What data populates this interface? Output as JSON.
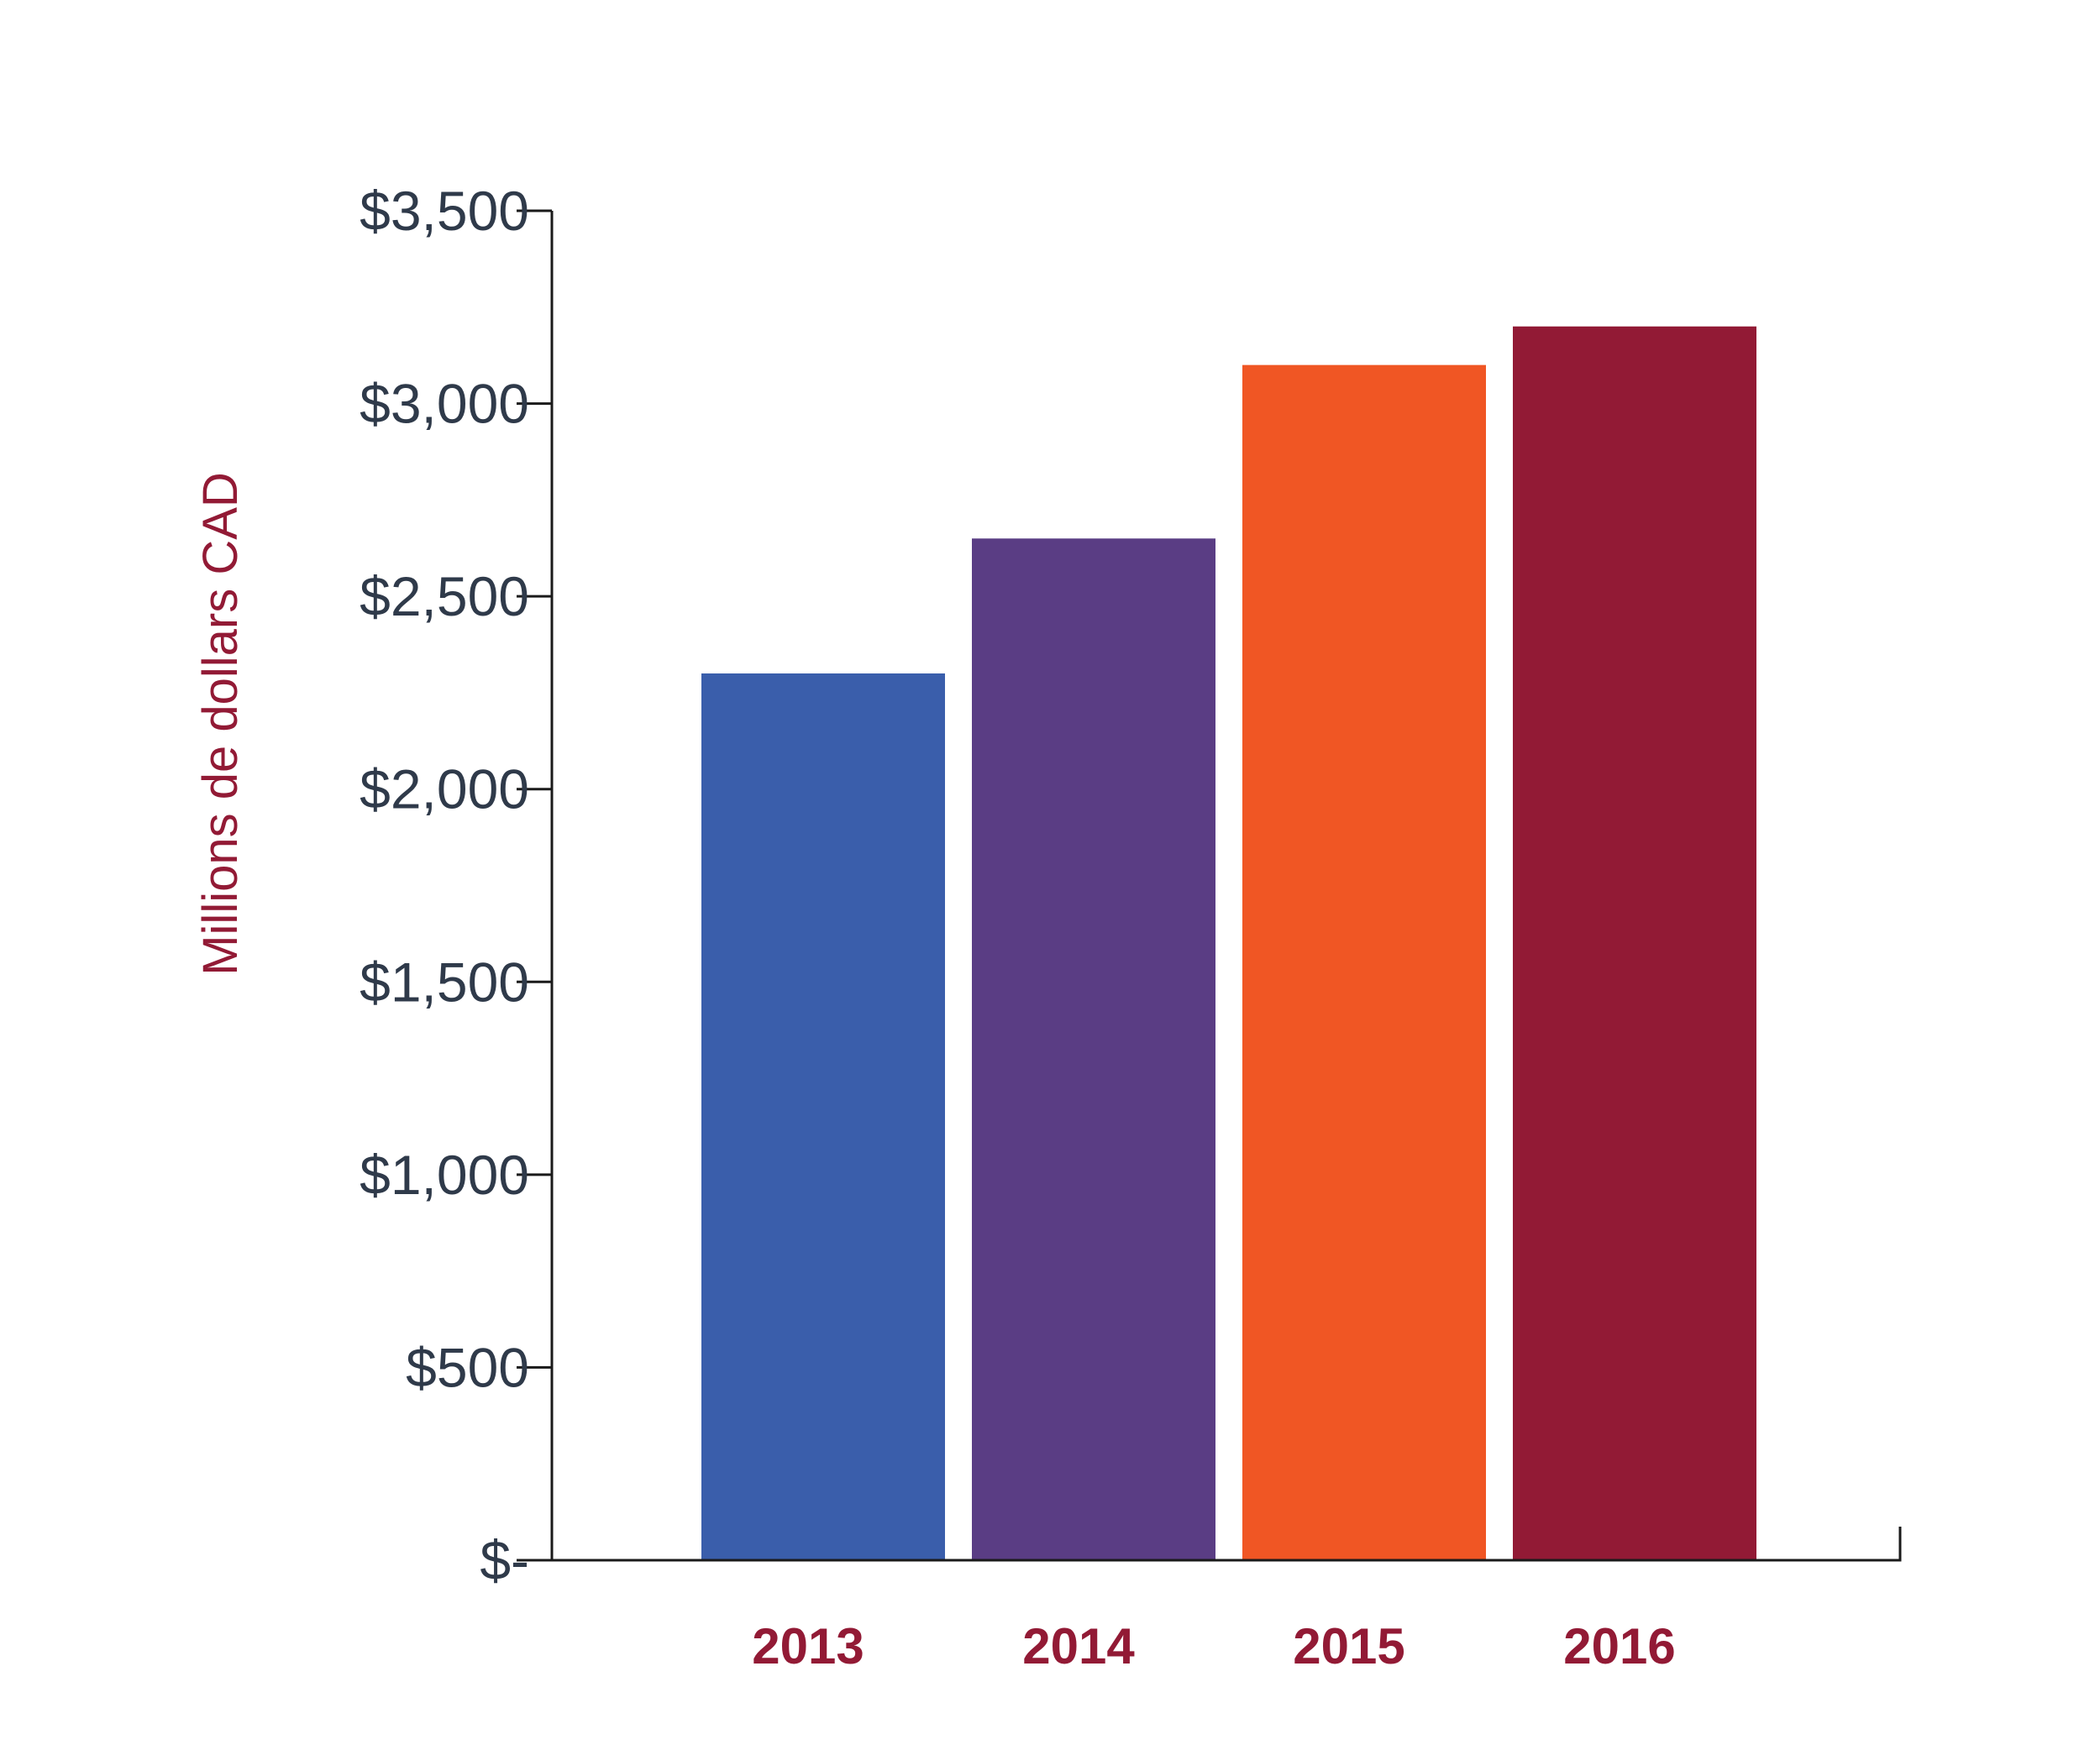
{
  "chart_data": {
    "type": "bar",
    "categories": [
      "2013",
      "2014",
      "2015",
      "2016"
    ],
    "values": [
      2300,
      2650,
      3100,
      3200
    ],
    "colors": [
      "#3a5eab",
      "#5a3d84",
      "#f05624",
      "#921a35"
    ],
    "title": "",
    "xlabel": "",
    "ylabel": "Millions de dollars CAD",
    "ylim": [
      0,
      3500
    ],
    "yticks": [
      0,
      500,
      1000,
      1500,
      2000,
      2500,
      3000,
      3500
    ],
    "ytick_labels": [
      "$-",
      "$500",
      "$1,000",
      "$1,500",
      "$2,000",
      "$2,500",
      "$3,000",
      "$3,500"
    ],
    "grid": false,
    "legend": "none"
  }
}
